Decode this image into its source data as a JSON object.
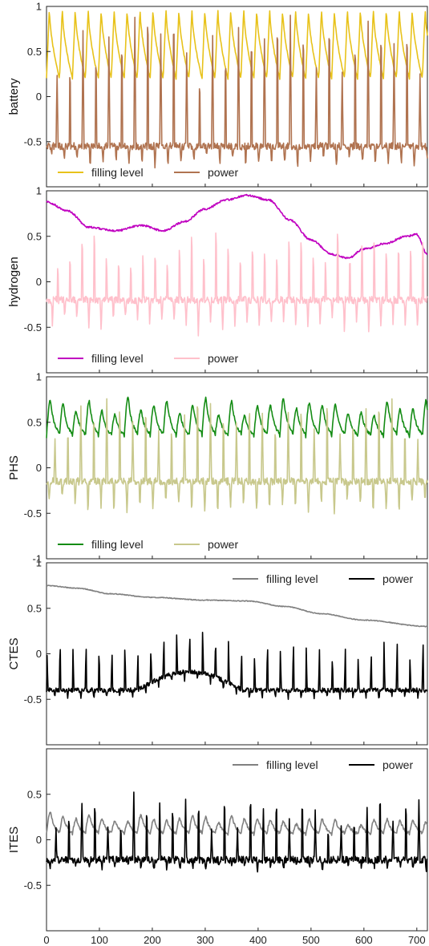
{
  "chart_data": [
    {
      "type": "line",
      "ylabel": "battery",
      "ylim": [
        -1,
        1
      ],
      "yticks": [
        1,
        0.5,
        0,
        -0.5
      ],
      "ytick_labels": [
        "1",
        "0.5",
        "0",
        "-0.5"
      ],
      "xlim": [
        0,
        720
      ],
      "legend": "bottom-left",
      "series": [
        {
          "name": "filling level",
          "color": "#e8c21a",
          "gen": {
            "kind": "saw",
            "lo": 0.2,
            "hi": 0.98,
            "period": 24.5,
            "seed": 1
          }
        },
        {
          "name": "power",
          "color": "#b07350",
          "gen": {
            "kind": "spike",
            "base": -0.55,
            "amp": 1.45,
            "period": 24.5,
            "phase": 6,
            "seed": 2
          }
        }
      ]
    },
    {
      "type": "line",
      "ylabel": "hydrogen",
      "ylim": [
        -1,
        1
      ],
      "yticks": [
        1,
        0.5,
        0,
        -0.5
      ],
      "ytick_labels": [
        "1",
        "0.5",
        "0",
        "-0.5"
      ],
      "xlim": [
        0,
        720
      ],
      "legend": "bottom-left",
      "series": [
        {
          "name": "filling level",
          "color": "#c000c0",
          "gen": {
            "kind": "knots",
            "pts": [
              [
                0,
                0.88
              ],
              [
                40,
                0.78
              ],
              [
                80,
                0.6
              ],
              [
                130,
                0.56
              ],
              [
                180,
                0.62
              ],
              [
                220,
                0.56
              ],
              [
                260,
                0.66
              ],
              [
                300,
                0.8
              ],
              [
                340,
                0.9
              ],
              [
                380,
                0.95
              ],
              [
                420,
                0.9
              ],
              [
                460,
                0.68
              ],
              [
                500,
                0.46
              ],
              [
                540,
                0.3
              ],
              [
                570,
                0.26
              ],
              [
                600,
                0.36
              ],
              [
                640,
                0.42
              ],
              [
                680,
                0.5
              ],
              [
                700,
                0.52
              ],
              [
                720,
                0.3
              ]
            ],
            "noise": 0.01,
            "seed": 3
          }
        },
        {
          "name": "power",
          "color": "#ffc0cb",
          "gen": {
            "kind": "spike",
            "base": -0.2,
            "amp": 0.75,
            "period": 23,
            "phase": 3,
            "seed": 4,
            "neg": 0.35
          }
        }
      ]
    },
    {
      "type": "line",
      "ylabel": "PHS",
      "ylim": [
        -1,
        1
      ],
      "yticks": [
        1,
        0.5,
        0,
        -0.5,
        -1
      ],
      "ytick_labels": [
        "1",
        "0.5",
        "0",
        "-0.5",
        "-1"
      ],
      "xlim": [
        0,
        720
      ],
      "legend": "bottom-left",
      "series": [
        {
          "name": "filling level",
          "color": "#148c14",
          "gen": {
            "kind": "wave",
            "base": 0.55,
            "amp": 0.38,
            "period": 24.5,
            "seed": 5
          }
        },
        {
          "name": "power",
          "color": "#c8c88c",
          "gen": {
            "kind": "spike",
            "base": -0.15,
            "amp": 0.9,
            "period": 24.5,
            "phase": 10,
            "seed": 6,
            "neg": 0.35
          }
        }
      ]
    },
    {
      "type": "line",
      "ylabel": "CTES",
      "ylim": [
        -1,
        1
      ],
      "yticks": [
        0.5,
        0,
        -0.5,
        1
      ],
      "ytick_labels": [
        "0.5",
        "0",
        "-0.5",
        "1"
      ],
      "xlim": [
        0,
        720
      ],
      "legend": "top-right",
      "series": [
        {
          "name": "filling level",
          "color": "#808080",
          "gen": {
            "kind": "knots",
            "pts": [
              [
                0,
                0.75
              ],
              [
                60,
                0.72
              ],
              [
                120,
                0.66
              ],
              [
                200,
                0.62
              ],
              [
                300,
                0.59
              ],
              [
                380,
                0.58
              ],
              [
                450,
                0.52
              ],
              [
                520,
                0.44
              ],
              [
                600,
                0.37
              ],
              [
                720,
                0.3
              ]
            ],
            "noise": 0.004,
            "seed": 7
          }
        },
        {
          "name": "power",
          "color": "#000000",
          "gen": {
            "kind": "ctes",
            "seed": 8
          }
        }
      ]
    },
    {
      "type": "line",
      "ylabel": "ITES",
      "ylim": [
        -1,
        1
      ],
      "yticks": [
        0.5,
        0,
        -0.5
      ],
      "ytick_labels": [
        "0.5",
        "0",
        "-0.5"
      ],
      "xlim": [
        0,
        720
      ],
      "xticks": [
        0,
        100,
        200,
        300,
        400,
        500,
        600,
        700
      ],
      "xtick_labels": [
        "0",
        "100",
        "200",
        "300",
        "400",
        "500",
        "600",
        "700"
      ],
      "legend": "top-right",
      "series": [
        {
          "name": "filling level",
          "color": "#808080",
          "gen": {
            "kind": "wave",
            "base": 0.18,
            "amp": 0.22,
            "period": 24.5,
            "seed": 9,
            "decay": true
          }
        },
        {
          "name": "power",
          "color": "#000000",
          "gen": {
            "kind": "spike",
            "base": -0.22,
            "amp": 0.68,
            "period": 24.5,
            "phase": 8,
            "seed": 10,
            "neg": 0.1
          }
        }
      ]
    }
  ]
}
